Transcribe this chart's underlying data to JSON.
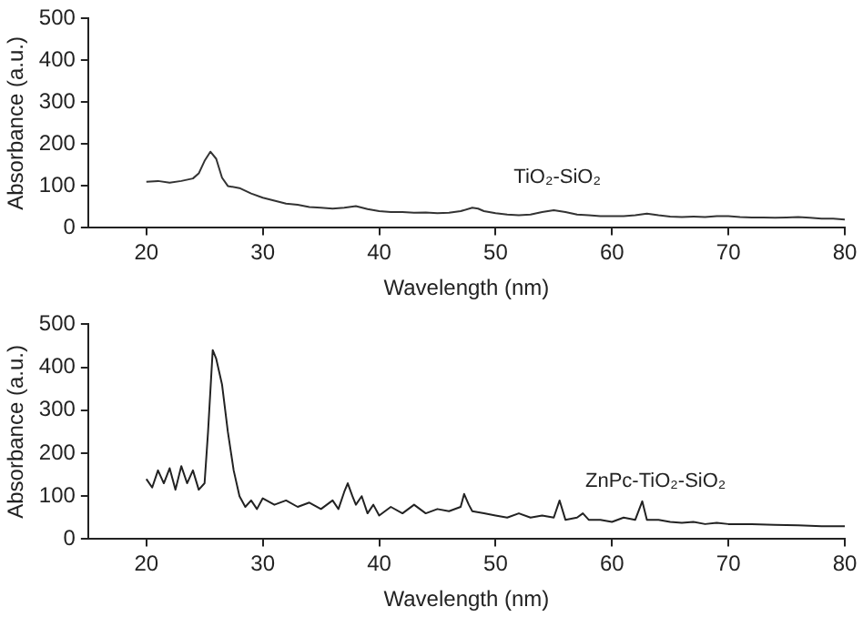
{
  "chart_data": [
    {
      "type": "line",
      "xlabel": "Wavelength (nm)",
      "ylabel": "Absorbance (a.u.)",
      "xlim": [
        15,
        80
      ],
      "xticks": [
        20,
        30,
        40,
        50,
        60,
        70,
        80
      ],
      "ylim": [
        0,
        500
      ],
      "yticks": [
        0,
        100,
        200,
        300,
        400,
        500
      ],
      "grid": false,
      "legend": false,
      "marker": "none",
      "line_style": "solid",
      "series": [
        {
          "name": "TiO₂-SiO₂",
          "color": "#333333",
          "x": [
            20,
            21,
            22,
            23,
            24,
            24.5,
            25,
            25.5,
            26,
            26.5,
            27,
            28,
            29,
            30,
            31,
            32,
            33,
            34,
            35,
            36,
            37,
            38,
            39,
            40,
            41,
            42,
            43,
            44,
            45,
            46,
            47,
            48,
            48.5,
            49,
            50,
            51,
            52,
            53,
            54,
            55,
            56,
            57,
            58,
            59,
            60,
            61,
            62,
            63,
            64,
            65,
            66,
            67,
            68,
            69,
            70,
            71,
            72,
            73,
            74,
            75,
            76,
            77,
            78,
            79,
            80
          ],
          "values": [
            110,
            112,
            108,
            112,
            118,
            130,
            160,
            182,
            165,
            120,
            100,
            95,
            82,
            72,
            65,
            58,
            55,
            50,
            48,
            46,
            48,
            52,
            45,
            40,
            38,
            38,
            36,
            37,
            35,
            36,
            40,
            48,
            46,
            40,
            35,
            32,
            30,
            32,
            38,
            42,
            38,
            32,
            30,
            28,
            28,
            28,
            30,
            34,
            30,
            27,
            26,
            27,
            26,
            28,
            28,
            26,
            25,
            25,
            24,
            25,
            26,
            24,
            22,
            22,
            20
          ]
        }
      ]
    },
    {
      "type": "line",
      "xlabel": "Wavelength (nm)",
      "ylabel": "Absorbance (a.u.)",
      "xlim": [
        15,
        80
      ],
      "xticks": [
        20,
        30,
        40,
        50,
        60,
        70,
        80
      ],
      "ylim": [
        0,
        500
      ],
      "yticks": [
        0,
        100,
        200,
        300,
        400,
        500
      ],
      "grid": false,
      "legend": false,
      "marker": "none",
      "line_style": "solid",
      "series": [
        {
          "name": "ZnPc-TiO₂-SiO₂",
          "color": "#222222",
          "x": [
            20,
            20.5,
            21,
            21.5,
            22,
            22.5,
            23,
            23.5,
            24,
            24.5,
            25,
            25.3,
            25.7,
            26,
            26.5,
            27,
            27.5,
            28,
            28.5,
            29,
            29.5,
            30,
            31,
            32,
            33,
            34,
            35,
            36,
            36.5,
            37,
            37.3,
            37.7,
            38,
            38.5,
            39,
            39.5,
            40,
            41,
            42,
            43,
            44,
            45,
            46,
            47,
            47.3,
            47.7,
            48,
            49,
            50,
            51,
            52,
            53,
            54,
            55,
            55.5,
            56,
            57,
            57.5,
            58,
            59,
            60,
            61,
            62,
            62.6,
            63,
            64,
            65,
            66,
            67,
            68,
            69,
            70,
            72,
            74,
            76,
            78,
            80
          ],
          "values": [
            140,
            120,
            160,
            130,
            165,
            115,
            170,
            130,
            160,
            115,
            130,
            250,
            440,
            420,
            360,
            250,
            160,
            100,
            75,
            90,
            70,
            95,
            80,
            90,
            75,
            85,
            70,
            90,
            70,
            110,
            130,
            100,
            80,
            100,
            60,
            80,
            55,
            75,
            60,
            80,
            60,
            70,
            65,
            75,
            105,
            80,
            65,
            60,
            55,
            50,
            60,
            50,
            55,
            50,
            90,
            45,
            50,
            60,
            45,
            45,
            40,
            50,
            45,
            88,
            45,
            45,
            40,
            38,
            40,
            35,
            38,
            35,
            35,
            33,
            32,
            30,
            30
          ]
        }
      ]
    }
  ]
}
